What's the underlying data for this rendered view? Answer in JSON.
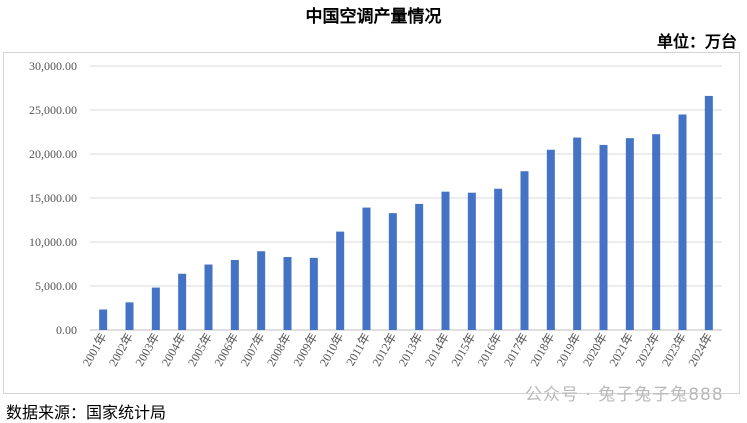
{
  "chart_data": {
    "type": "bar",
    "title": "中国空调产量情况",
    "unit_label": "单位：万台",
    "categories": [
      "2001年",
      "2002年",
      "2003年",
      "2004年",
      "2005年",
      "2006年",
      "2007年",
      "2008年",
      "2009年",
      "2010年",
      "2011年",
      "2012年",
      "2013年",
      "2014年",
      "2015年",
      "2016年",
      "2017年",
      "2018年",
      "2019年",
      "2020年",
      "2021年",
      "2022年",
      "2023年",
      "2024年"
    ],
    "values": [
      2330,
      3140,
      4820,
      6390,
      7440,
      7950,
      8950,
      8290,
      8200,
      11180,
      13910,
      13280,
      14330,
      15720,
      15600,
      16050,
      18040,
      20480,
      21870,
      21030,
      21800,
      22250,
      24490,
      26600
    ],
    "yticks": [
      "0.00",
      "5,000.00",
      "10,000.00",
      "15,000.00",
      "20,000.00",
      "25,000.00",
      "30,000.00"
    ],
    "ylim": [
      0,
      30000
    ],
    "grid": true,
    "bar_color": "#4472C4"
  },
  "source_text": "数据来源：国家统计局",
  "watermark_text": "公众号 · 兔子兔子兔888"
}
